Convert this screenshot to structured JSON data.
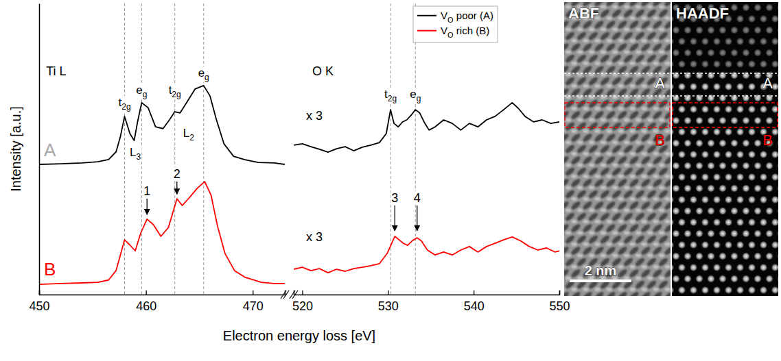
{
  "chart_data": [
    {
      "type": "line",
      "xlabel": "Electron energy loss [eV]",
      "ylabel": "Intensity [a.u.]",
      "xlim": [
        450,
        473
      ],
      "xticks": [
        450,
        460,
        470
      ],
      "ylim": [
        0,
        10
      ],
      "tick_labels": "x",
      "vlines": [
        458.0,
        459.6,
        462.7,
        465.4
      ],
      "series": [
        {
          "color": "#000000",
          "x": [
            450,
            452,
            454,
            455.5,
            456.5,
            457.2,
            457.6,
            458.0,
            458.5,
            458.9,
            459.2,
            459.6,
            460.2,
            460.9,
            461.6,
            462.2,
            462.7,
            463.2,
            463.8,
            464.6,
            465.4,
            466.0,
            466.6,
            467.3,
            468.2,
            469.2,
            470.5,
            472,
            473
          ],
          "values": [
            4.47,
            4.49,
            4.52,
            4.56,
            4.64,
            4.9,
            5.41,
            6.12,
            5.53,
            5.29,
            5.9,
            6.59,
            6.42,
            5.76,
            5.7,
            6.0,
            6.28,
            6.24,
            6.59,
            7.06,
            7.18,
            6.82,
            6.0,
            5.18,
            4.75,
            4.64,
            4.54,
            4.52,
            4.47
          ]
        },
        {
          "color": "#ff0000",
          "x": [
            450,
            452,
            454,
            455.5,
            456.5,
            457.2,
            458.0,
            458.5,
            459.0,
            459.5,
            460.1,
            460.7,
            461.4,
            462.1,
            462.9,
            463.4,
            464.0,
            464.8,
            465.5,
            466.1,
            466.7,
            467.4,
            468.3,
            469.3,
            470.8,
            472,
            473
          ],
          "values": [
            0.35,
            0.38,
            0.4,
            0.42,
            0.5,
            0.82,
            1.88,
            1.7,
            1.5,
            2.1,
            2.59,
            2.4,
            2.0,
            2.3,
            3.29,
            3.06,
            3.3,
            3.65,
            3.88,
            3.41,
            2.35,
            1.41,
            0.82,
            0.59,
            0.42,
            0.38,
            0.38
          ]
        }
      ],
      "annotations": [
        {
          "text": "Ti L",
          "x": 451.6,
          "y": 7.53
        },
        {
          "text": "t2g",
          "x": 458.0,
          "y": 6.47,
          "subscript": true
        },
        {
          "text": "eg",
          "x": 459.6,
          "y": 6.89,
          "subscript": true
        },
        {
          "text": "t2g",
          "x": 462.7,
          "y": 6.89,
          "subscript": true
        },
        {
          "text": "eg",
          "x": 465.4,
          "y": 7.48,
          "subscript": true
        },
        {
          "text": "L3",
          "x": 459.0,
          "y": 4.75,
          "subscript": true
        },
        {
          "text": "L2",
          "x": 464.0,
          "y": 5.41,
          "subscript": true
        },
        {
          "text": "A",
          "x": 451.0,
          "y": 4.75,
          "color": "#a8a8a8"
        },
        {
          "text": "B",
          "x": 451.0,
          "y": 0.66,
          "color": "#ff0000"
        },
        {
          "text": "1",
          "x": 460.1,
          "y": 3.41,
          "arrow_to": 2.75
        },
        {
          "text": "2",
          "x": 462.9,
          "y": 4.0,
          "arrow_to": 3.45
        }
      ]
    },
    {
      "type": "line",
      "xlim": [
        519,
        550
      ],
      "xticks": [
        520,
        530,
        540,
        550
      ],
      "ylim": [
        0,
        10
      ],
      "tick_labels": "x",
      "legend": "upper right",
      "vlines": [
        530.3,
        533.2
      ],
      "series": [
        {
          "name": "VO poor (A)",
          "color": "#000000",
          "x": [
            519,
            520,
            521,
            522,
            523,
            524,
            525,
            526,
            527,
            528,
            529,
            529.8,
            530.3,
            530.7,
            531.2,
            531.7,
            532.2,
            532.7,
            533.2,
            533.7,
            534.3,
            534.8,
            535.5,
            536.5,
            537.5,
            538.5,
            539.5,
            540.5,
            541.5,
            542.5,
            543.5,
            544.5,
            545.2,
            546,
            547,
            548,
            549,
            550
          ],
          "values": [
            5.13,
            5.18,
            5.08,
            4.99,
            4.89,
            5.01,
            5.08,
            4.94,
            5.06,
            5.13,
            5.22,
            5.53,
            6.35,
            5.88,
            5.76,
            5.93,
            6.0,
            6.16,
            6.35,
            6.24,
            5.88,
            5.65,
            5.76,
            6.0,
            5.88,
            5.65,
            5.88,
            5.76,
            6.0,
            6.12,
            6.35,
            6.59,
            6.4,
            6.12,
            5.93,
            6.0,
            5.88,
            5.93
          ]
        },
        {
          "name": "VO rich (B)",
          "color": "#ff0000",
          "x": [
            519,
            520,
            521,
            522,
            523,
            524,
            525,
            526,
            527,
            528,
            529,
            529.9,
            530.8,
            531.3,
            531.8,
            532.3,
            532.8,
            533.4,
            533.9,
            534.6,
            535.5,
            536.5,
            537.5,
            538.5,
            539.5,
            540.5,
            541.5,
            542.5,
            543.5,
            544.5,
            545.5,
            546.5,
            547.5,
            548.5,
            549.5,
            550
          ],
          "values": [
            0.87,
            0.94,
            0.82,
            0.89,
            0.75,
            0.87,
            0.8,
            0.89,
            0.94,
            0.99,
            1.06,
            1.41,
            2.0,
            1.88,
            1.76,
            1.69,
            1.84,
            1.95,
            1.84,
            1.53,
            1.36,
            1.46,
            1.36,
            1.53,
            1.65,
            1.46,
            1.65,
            1.76,
            1.88,
            1.98,
            1.84,
            1.65,
            1.53,
            1.6,
            1.46,
            1.5
          ]
        }
      ],
      "annotations": [
        {
          "text": "O K",
          "x": 522.4,
          "y": 7.53
        },
        {
          "text": "x 3",
          "x": 521.4,
          "y": 6.0
        },
        {
          "text": "t2g",
          "x": 530.3,
          "y": 6.75,
          "subscript": true
        },
        {
          "text": "eg",
          "x": 533.2,
          "y": 6.75,
          "subscript": true
        },
        {
          "text": "x 3",
          "x": 521.4,
          "y": 1.84
        },
        {
          "text": "3",
          "x": 530.8,
          "y": 3.18,
          "arrow_to": 2.19
        },
        {
          "text": "4",
          "x": 533.4,
          "y": 3.18,
          "arrow_to": 2.19
        }
      ]
    }
  ],
  "image_panels": {
    "panels": [
      {
        "title": "ABF"
      },
      {
        "title": "HAADF"
      }
    ],
    "regions": [
      {
        "label": "A",
        "color": "#ffffff"
      },
      {
        "label": "B",
        "color": "#ff0000"
      }
    ],
    "scale_bar": "2 nm"
  }
}
